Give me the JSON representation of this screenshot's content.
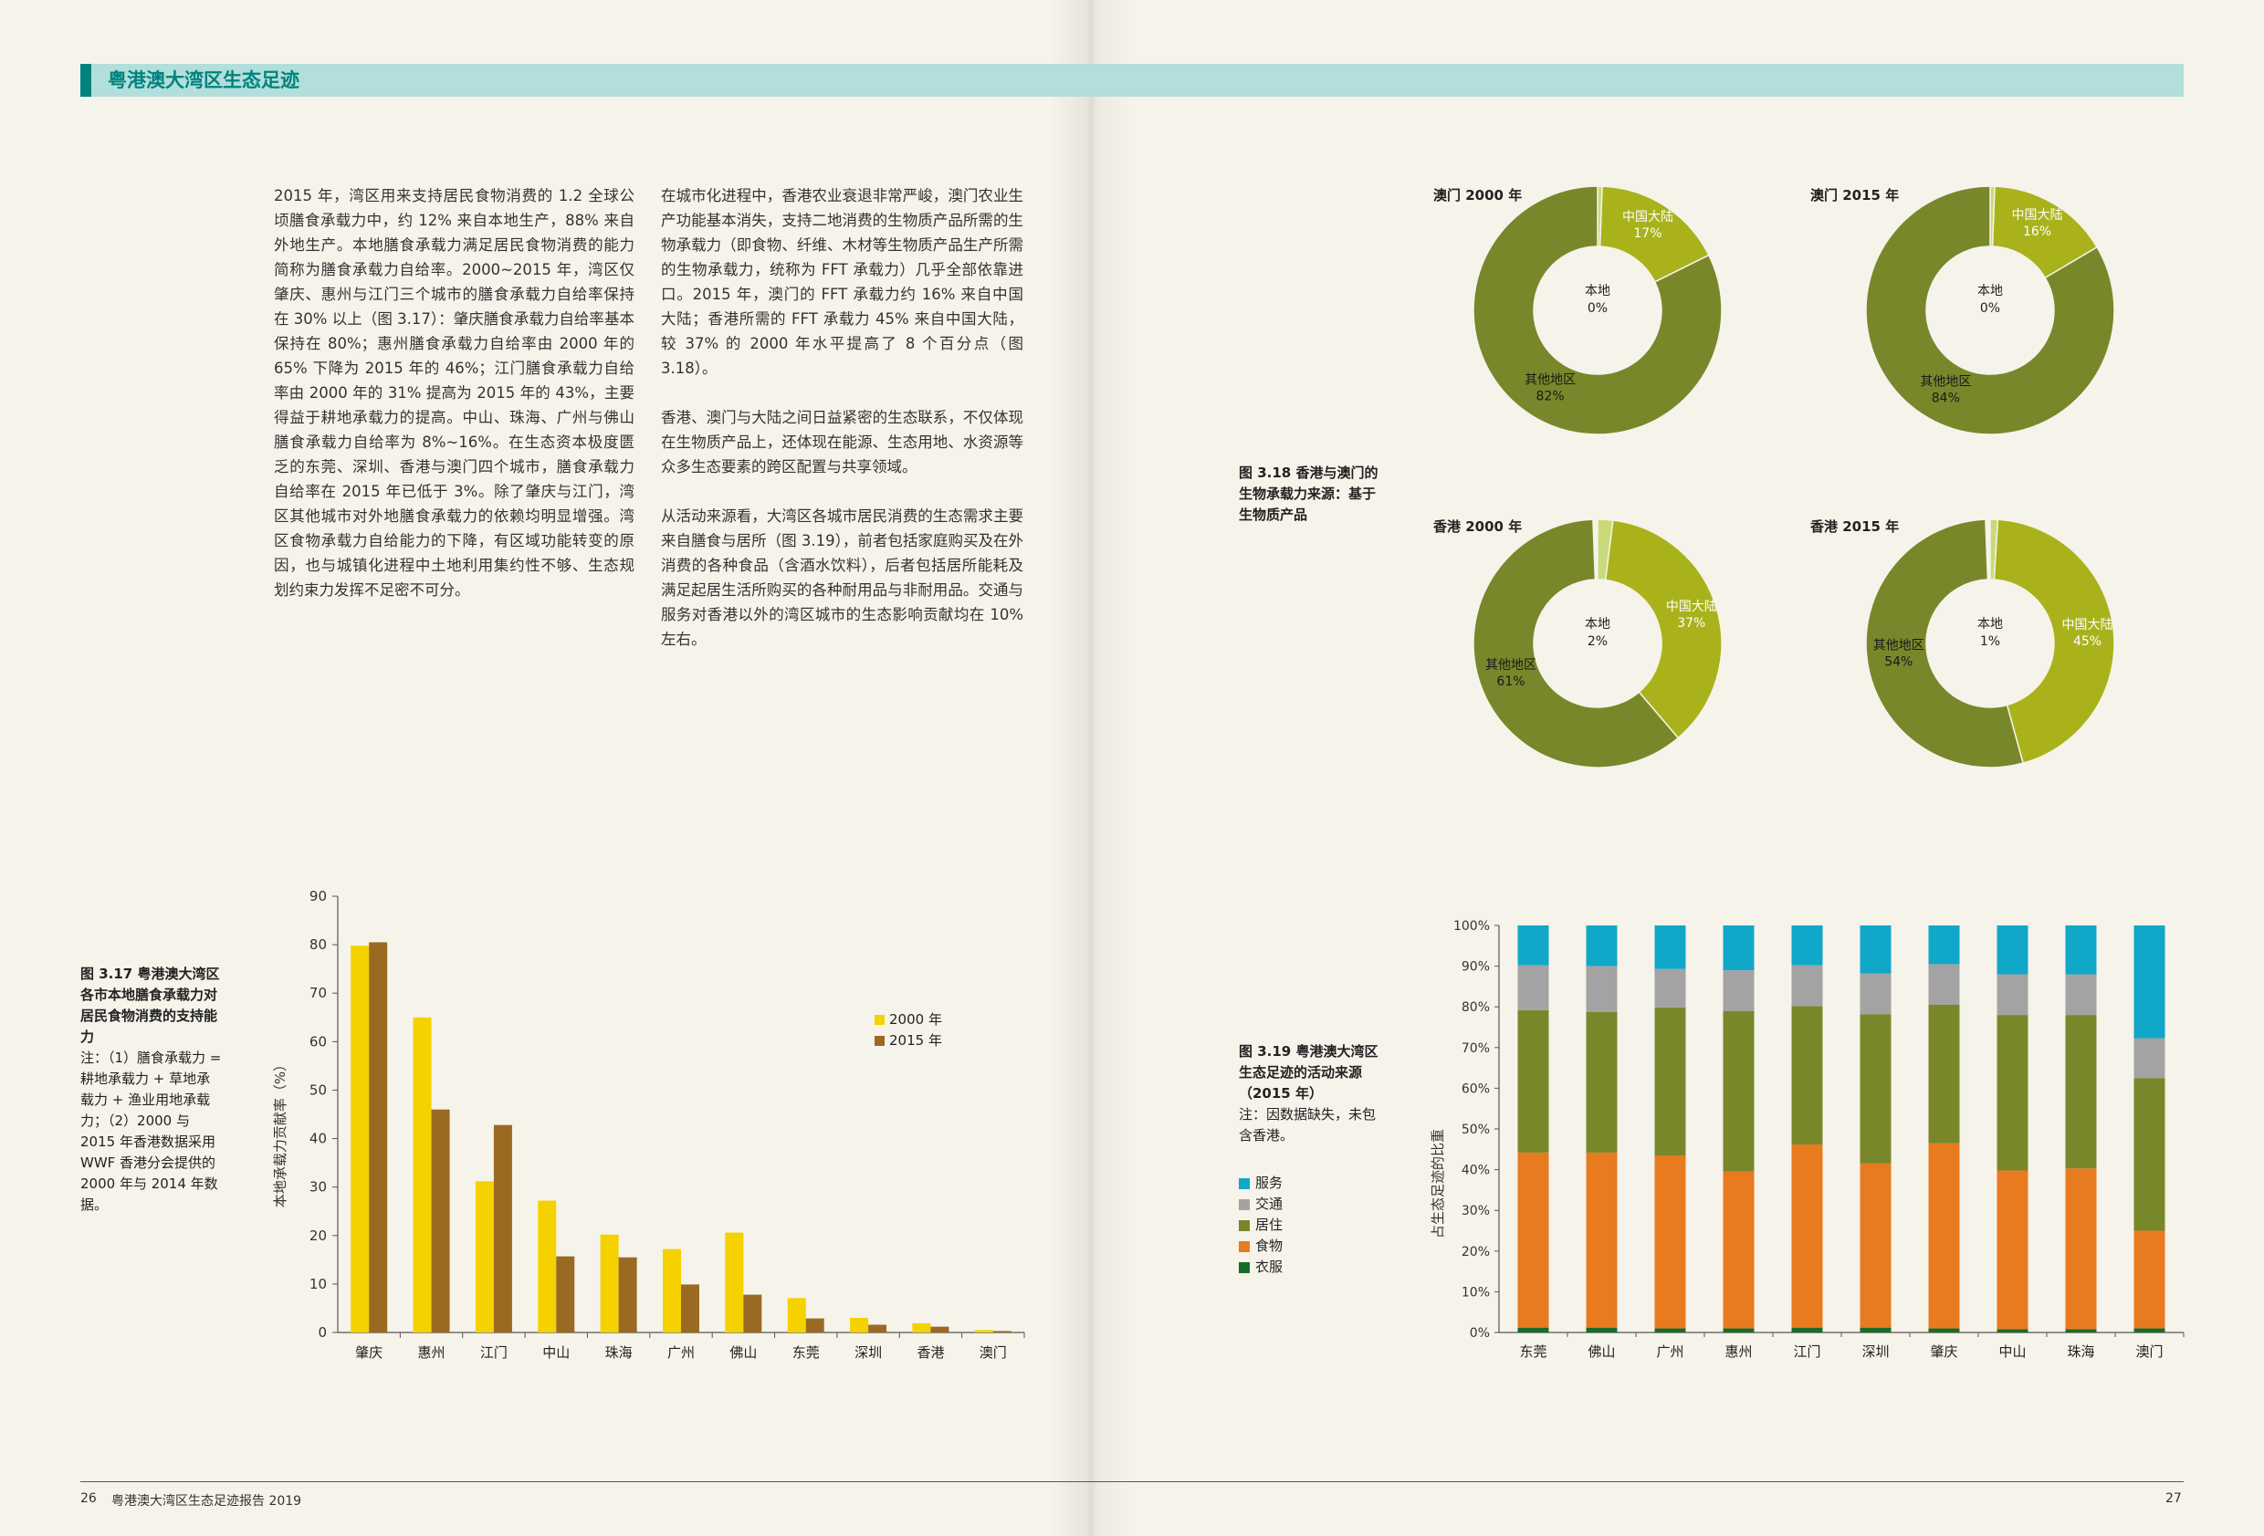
{
  "header": {
    "title": "粤港澳大湾区生态足迹"
  },
  "text_left": {
    "paragraphs": [
      "2015 年，湾区用来支持居民食物消费的 1.2 全球公顷膳食承载力中，约 12% 来自本地生产，88% 来自外地生产。本地膳食承载力满足居民食物消费的能力简称为膳食承载力自给率。2000~2015 年，湾区仅肇庆、惠州与江门三个城市的膳食承载力自给率保持在 30% 以上（图 3.17）：肇庆膳食承载力自给率基本保持在 80%；惠州膳食承载力自给率由 2000 年的 65% 下降为 2015 年的 46%；江门膳食承载力自给率由 2000 年的 31% 提高为 2015 年的 43%，主要得益于耕地承载力的提高。中山、珠海、广州与佛山膳食承载力自给率为 8%~16%。在生态资本极度匮乏的东莞、深圳、香港与澳门四个城市，膳食承载力自给率在 2015 年已低于 3%。除了肇庆与江门，湾区其他城市对外地膳食承载力的依赖均明显增强。湾区食物承载力自给能力的下降，有区域功能转变的原因，也与城镇化进程中土地利用集约性不够、生态规划约束力发挥不足密不可分。"
    ]
  },
  "text_right": {
    "paragraphs": [
      "在城市化进程中，香港农业衰退非常严峻，澳门农业生产功能基本消失，支持二地消费的生物质产品所需的生物承载力（即食物、纤维、木材等生物质产品生产所需的生物承载力，统称为 FFT 承载力）几乎全部依靠进口。2015 年，澳门的 FFT 承载力约 16% 来自中国大陆；香港所需的 FFT 承载力 45% 来自中国大陆，较 37% 的 2000 年水平提高了 8 个百分点（图 3.18）。",
      "香港、澳门与大陆之间日益紧密的生态联系，不仅体现在生物质产品上，还体现在能源、生态用地、水资源等众多生态要素的跨区配置与共享领域。",
      "从活动来源看，大湾区各城市居民消费的生态需求主要来自膳食与居所（图 3.19），前者包括家庭购买及在外消费的各种食品（含酒水饮料），后者包括居所能耗及满足起居生活所购买的各种耐用品与非耐用品。交通与服务对香港以外的湾区城市的生态影响贡献均在 10% 左右。"
    ]
  },
  "fig317": {
    "title": "图 3.17 粤港澳大湾区各市本地膳食承载力对居民食物消费的支持能力",
    "note": "注：（1）膳食承载力 = 耕地承载力 + 草地承载力 + 渔业用地承载力；（2）2000 与 2015 年香港数据采用 WWF 香港分会提供的 2000 年与 2014 年数据。"
  },
  "fig318": {
    "title": "图 3.18 香港与澳门的生物承载力来源：基于生物质产品"
  },
  "fig319": {
    "title": "图 3.19 粤港澳大湾区生态足迹的活动来源（2015 年）",
    "note": "注：因数据缺失，未包含香港。"
  },
  "footer": {
    "left_page_number": "26",
    "report_title": "粤港澳大湾区生态足迹报告 2019",
    "right_page_number": "27"
  },
  "colors": {
    "teal": "#00827f",
    "header_bar": "#b2dfdb",
    "y2000": "#f5d100",
    "y2015": "#9a6a22",
    "local": "#c9da7a",
    "mainland": "#a9b21a",
    "other": "#78872a",
    "service": "#10a7c9",
    "transport": "#a3a3a3",
    "housing": "#78872a",
    "food": "#e87b1f",
    "clothing": "#1a6b2a"
  },
  "chart_data": [
    {
      "id": "fig317",
      "type": "bar",
      "title": "",
      "ylabel": "本地承载力贡献率（%）",
      "xlabel": "",
      "ylim": [
        0,
        90
      ],
      "yticks": [
        0,
        10,
        20,
        30,
        40,
        50,
        60,
        70,
        80,
        90
      ],
      "categories": [
        "肇庆",
        "惠州",
        "江门",
        "中山",
        "珠海",
        "广州",
        "佛山",
        "东莞",
        "深圳",
        "香港",
        "澳门"
      ],
      "series": [
        {
          "name": "2000 年",
          "values": [
            79.8,
            65.0,
            31.2,
            27.2,
            20.2,
            17.2,
            20.6,
            7.1,
            3.0,
            1.9,
            0.5
          ]
        },
        {
          "name": "2015 年",
          "values": [
            80.5,
            46.0,
            42.8,
            15.7,
            15.5,
            9.9,
            7.8,
            2.9,
            1.6,
            1.2,
            0.3
          ]
        }
      ],
      "legend": "right"
    },
    {
      "id": "fig318",
      "type": "pie",
      "charts": [
        {
          "title": "澳门 2000 年",
          "slices": [
            {
              "label": "本地",
              "value": 0,
              "pct": "0%"
            },
            {
              "label": "中国大陆",
              "value": 17,
              "pct": "17%"
            },
            {
              "label": "其他地区",
              "value": 82,
              "pct": "82%"
            }
          ]
        },
        {
          "title": "澳门 2015 年",
          "slices": [
            {
              "label": "本地",
              "value": 0,
              "pct": "0%"
            },
            {
              "label": "中国大陆",
              "value": 16,
              "pct": "16%"
            },
            {
              "label": "其他地区",
              "value": 84,
              "pct": "84%"
            }
          ]
        },
        {
          "title": "香港 2000 年",
          "slices": [
            {
              "label": "本地",
              "value": 2,
              "pct": "2%"
            },
            {
              "label": "中国大陆",
              "value": 37,
              "pct": "37%"
            },
            {
              "label": "其他地区",
              "value": 61,
              "pct": "61%"
            }
          ]
        },
        {
          "title": "香港 2015 年",
          "slices": [
            {
              "label": "本地",
              "value": 1,
              "pct": "1%"
            },
            {
              "label": "中国大陆",
              "value": 45,
              "pct": "45%"
            },
            {
              "label": "其他地区",
              "value": 54,
              "pct": "54%"
            }
          ]
        }
      ]
    },
    {
      "id": "fig319",
      "type": "bar",
      "stacked": true,
      "ylabel": "占生态足迹的比重",
      "ylim": [
        0,
        100
      ],
      "yticks": [
        "0%",
        "10%",
        "20%",
        "30%",
        "40%",
        "50%",
        "60%",
        "70%",
        "80%",
        "90%",
        "100%"
      ],
      "categories": [
        "东莞",
        "佛山",
        "广州",
        "惠州",
        "江门",
        "深圳",
        "肇庆",
        "中山",
        "珠海",
        "澳门"
      ],
      "series": [
        {
          "name": "衣服",
          "values": [
            1.2,
            1.2,
            1.0,
            1.0,
            1.2,
            1.2,
            1.0,
            0.8,
            0.8,
            1.0
          ]
        },
        {
          "name": "食物",
          "values": [
            43.0,
            43.0,
            42.5,
            38.5,
            45.0,
            40.3,
            45.5,
            39.0,
            39.5,
            24.0
          ]
        },
        {
          "name": "居住",
          "values": [
            35.0,
            34.5,
            36.3,
            39.5,
            34.0,
            36.7,
            34.0,
            38.2,
            37.7,
            37.5
          ]
        },
        {
          "name": "交通",
          "values": [
            11.0,
            11.3,
            9.5,
            10.0,
            10.0,
            10.0,
            10.0,
            10.0,
            10.0,
            9.8
          ]
        },
        {
          "name": "服务",
          "values": [
            9.8,
            10.0,
            10.7,
            11.0,
            9.8,
            11.8,
            9.5,
            12.0,
            12.0,
            27.7
          ]
        }
      ],
      "legend_order": [
        "服务",
        "交通",
        "居住",
        "食物",
        "衣服"
      ]
    }
  ]
}
